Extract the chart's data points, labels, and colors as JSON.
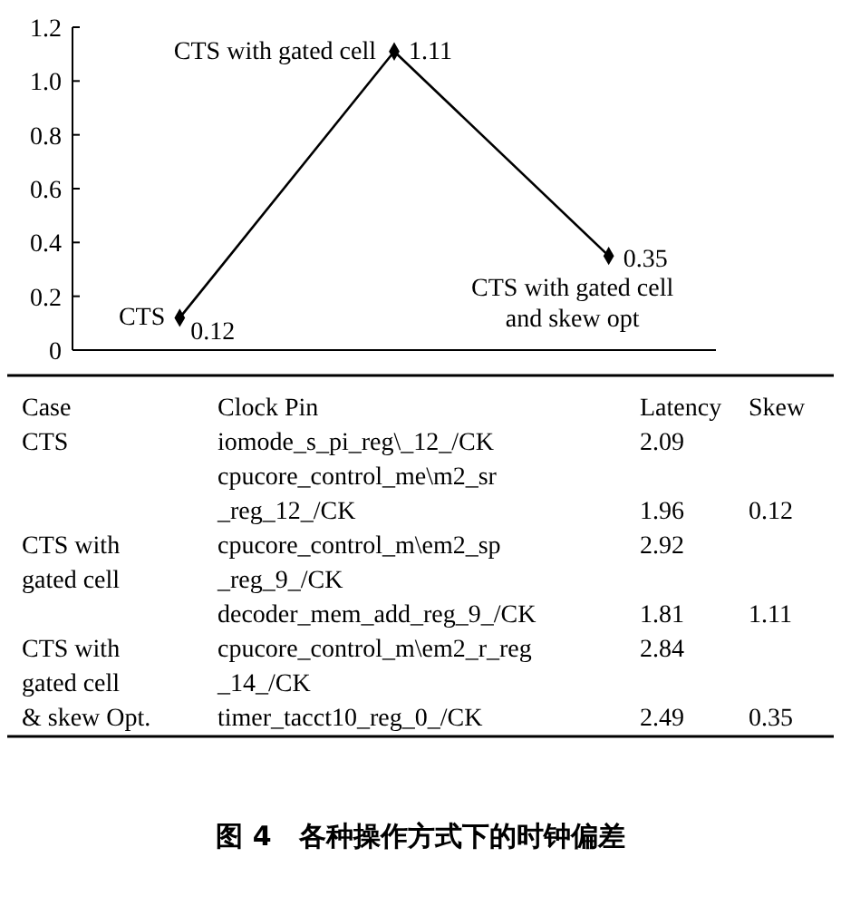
{
  "chart_data": [
    {
      "type": "line",
      "categories": [
        "CTS",
        "CTS with gated cell",
        "CTS with gated cell\nand skew opt"
      ],
      "series": [
        {
          "color": "#000000",
          "values": [
            0.12,
            1.11,
            0.35
          ]
        }
      ],
      "ylim": [
        0,
        1.2
      ],
      "yticks": [
        0,
        {
          "value": 0.2,
          "label": "0.2"
        },
        {
          "value": 0.4,
          "label": "0.4"
        },
        {
          "value": 0.6,
          "label": "0.6"
        },
        {
          "value": 0.8,
          "label": "0.8"
        },
        {
          "value": 1.0,
          "label": "1.0"
        },
        {
          "value": 1.2,
          "label": "1.2"
        }
      ],
      "data_labels": true,
      "marker": "diamond",
      "line_style": "solid",
      "grid": false
    },
    {
      "type": "other",
      "categories": [
        "Case",
        "Clock Pin",
        "Latency",
        "Skew"
      ],
      "cell_labels": [
        [
          "CTS",
          "iomode_s_pi_reg\\_12_/CK",
          "2.09",
          null
        ],
        [
          null,
          "cpucore_control_me\\m2_sr",
          null,
          null
        ],
        [
          null,
          "_reg_12_/CK",
          "1.96",
          "0.12"
        ],
        [
          "CTS with",
          "cpucore_control_m\\em2_sp",
          "2.92",
          null
        ],
        [
          "gated cell",
          "_reg_9_/CK",
          null,
          null
        ],
        [
          null,
          "decoder_mem_add_reg_9_/CK",
          "1.81",
          "1.11"
        ],
        [
          "CTS with",
          "cpucore_control_m\\em2_r_reg",
          "2.84",
          null
        ],
        [
          "gated cell",
          "_14_/CK",
          null,
          null
        ],
        [
          "& skew Opt.",
          "timer_tacct10_reg_0_/CK",
          "2.49",
          "0.35"
        ]
      ],
      "annotations": [
        "图 4　各种操作方式下的时钟偏差"
      ]
    }
  ]
}
